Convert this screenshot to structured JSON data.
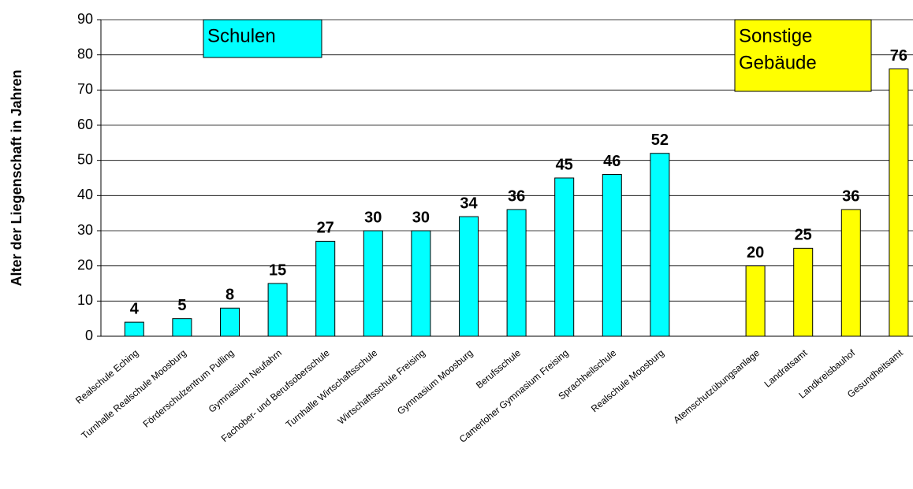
{
  "chart_data": {
    "type": "bar",
    "y_label": "Alter der Liegenschaft in Jahren",
    "categories": [
      "Realschule Eching",
      "Turnhalle Realschule Moosburg",
      "Förderschulzentrum Pulling",
      "Gymnasium Neufahrn",
      "Fachober- und Berufsoberschule",
      "Turnhalle Wirtschaftsschule",
      "Wirtschaftsschule Freising",
      "Gymnasium Moosburg",
      "Berufsschule",
      "Camerloher Gymnasium Freising",
      "Sprachheilschule",
      "Realschule Moosburg",
      null,
      "Atemschutzübungsanlage",
      "Landratsamt",
      "Landkreisbauhof",
      "Gesundheitsamt"
    ],
    "values": [
      4,
      5,
      8,
      15,
      27,
      30,
      30,
      34,
      36,
      45,
      46,
      52,
      null,
      20,
      25,
      36,
      76
    ],
    "colors": [
      "#00ffff",
      "#00ffff",
      "#00ffff",
      "#00ffff",
      "#00ffff",
      "#00ffff",
      "#00ffff",
      "#00ffff",
      "#00ffff",
      "#00ffff",
      "#00ffff",
      "#00ffff",
      null,
      "#ffff00",
      "#ffff00",
      "#ffff00",
      "#ffff00"
    ],
    "ylim": [
      0,
      90
    ],
    "yticks": [
      0,
      10,
      20,
      30,
      40,
      50,
      60,
      70,
      80,
      90
    ],
    "grid": true,
    "annotations": [
      {
        "lines": [
          "Schulen"
        ],
        "color": "#00ffff"
      },
      {
        "lines": [
          "Sonstige",
          "Gebäude"
        ],
        "color": "#ffff00"
      }
    ]
  }
}
